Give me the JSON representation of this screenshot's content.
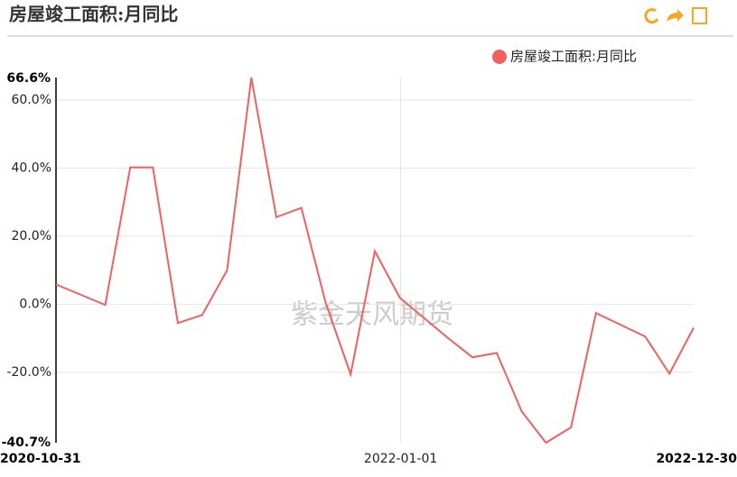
{
  "chart_data": {
    "type": "line",
    "title": "房屋竣工面积:月同比",
    "watermark": "紫金天风期货",
    "x": [
      "2020-10-31",
      "2020-12-31",
      "2021-01-31",
      "2021-02-28",
      "2021-03-31",
      "2021-04-30",
      "2021-05-31",
      "2021-06-30",
      "2021-07-31",
      "2021-08-31",
      "2021-09-30",
      "2021-10-31",
      "2021-11-30",
      "2021-12-31",
      "2022-02-28",
      "2022-03-31",
      "2022-04-30",
      "2022-05-31",
      "2022-06-30",
      "2022-07-31",
      "2022-08-31",
      "2022-09-30",
      "2022-10-31",
      "2022-11-30",
      "2022-12-30"
    ],
    "series": [
      {
        "name": "房屋竣工面积:月同比",
        "color": "#f06060",
        "values": [
          5.8,
          -0.2,
          40.2,
          40.2,
          -5.5,
          -3.2,
          10.0,
          66.6,
          25.6,
          28.3,
          0.5,
          -20.6,
          15.6,
          1.9,
          -9.8,
          -15.6,
          -14.3,
          -31.5,
          -40.7,
          -36.2,
          -2.6,
          -6.0,
          -9.5,
          -20.4,
          -6.9
        ]
      }
    ],
    "xlim": [
      "2020-10-31",
      "2022-12-30"
    ],
    "xticks": [
      "2020-10-31",
      "2022-01-01",
      "2022-12-30"
    ],
    "ylim": [
      -40.7,
      66.6
    ],
    "yticks": [
      {
        "value": -40.7,
        "label": "-40.7%"
      },
      {
        "value": -20,
        "label": "-20.0%"
      },
      {
        "value": 0,
        "label": "0.0%"
      },
      {
        "value": 20,
        "label": "20.0%"
      },
      {
        "value": 40,
        "label": "40.0%"
      },
      {
        "value": 60,
        "label": "60.0%"
      },
      {
        "value": 66.6,
        "label": "66.6%"
      }
    ],
    "grid": true
  }
}
